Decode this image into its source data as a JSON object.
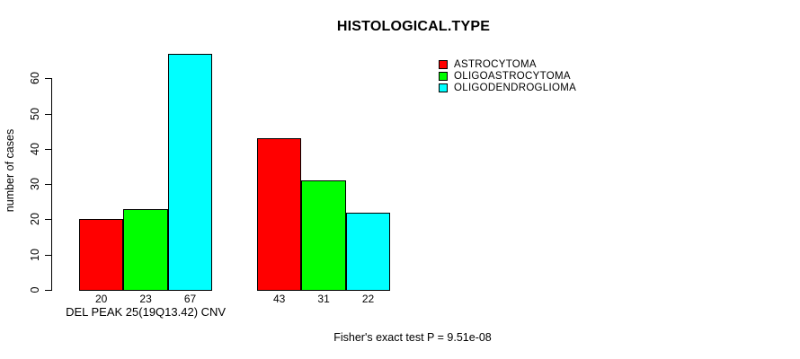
{
  "title": "HISTOLOGICAL.TYPE",
  "footer": "Fisher's exact test P = 9.51e-08",
  "y_axis": {
    "label": "number of cases",
    "ticks": [
      0,
      10,
      20,
      30,
      40,
      50,
      60
    ]
  },
  "chart_data": {
    "type": "bar",
    "title": "HISTOLOGICAL.TYPE",
    "xlabel": "",
    "ylabel": "number of cases",
    "categories": [
      "DEL PEAK 25(19Q13.42) CNV",
      ""
    ],
    "series": [
      {
        "name": "ASTROCYTOMA",
        "color": "#FF0000",
        "values": [
          20,
          43
        ]
      },
      {
        "name": "OLIGOASTROCYTOMA",
        "color": "#00FF00",
        "values": [
          23,
          31
        ]
      },
      {
        "name": "OLIGODENDROGLIOMA",
        "color": "#00FFFF",
        "values": [
          67,
          22
        ]
      }
    ],
    "bar_value_labels": [
      [
        "20",
        "23",
        "67"
      ],
      [
        "43",
        "31",
        "22"
      ]
    ],
    "yticks": [
      0,
      10,
      20,
      30,
      40,
      50,
      60
    ],
    "ylim": [
      0,
      67
    ],
    "grid": false,
    "legend_position": "top-right",
    "bar_border_color": "#000000",
    "annotation": "Fisher's exact test P = 9.51e-08"
  }
}
